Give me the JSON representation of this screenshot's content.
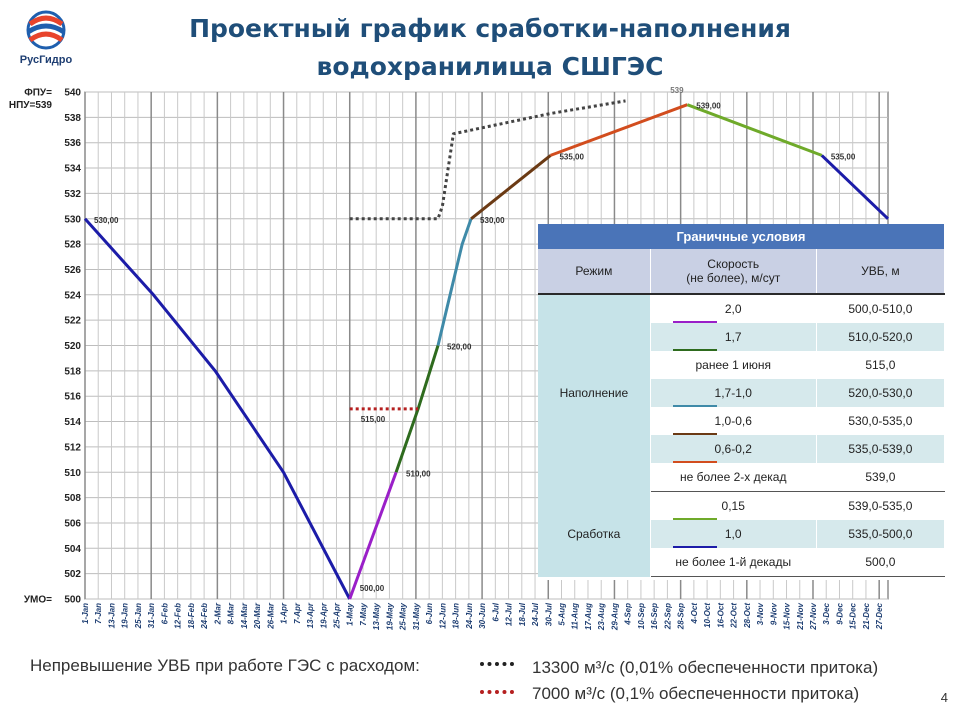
{
  "header": {
    "title_line1": "Проектный график сработки-наполнения",
    "title_line2": "водохранилища СШГЭС",
    "logo_text": "РусГидро"
  },
  "chart_data": {
    "type": "line",
    "ylim": [
      500,
      540
    ],
    "yticks": [
      500,
      502,
      504,
      506,
      508,
      510,
      512,
      514,
      516,
      518,
      520,
      522,
      524,
      526,
      528,
      530,
      532,
      534,
      536,
      538,
      540
    ],
    "level_labels": [
      {
        "text": "ФПУ=",
        "value": 540
      },
      {
        "text": "НПУ=539",
        "value": 539
      },
      {
        "text": "УМО=",
        "value": 500
      }
    ],
    "x_ticks": [
      "1-Jan",
      "7-Jan",
      "13-Jan",
      "19-Jan",
      "25-Jan",
      "31-Jan",
      "6-Feb",
      "12-Feb",
      "18-Feb",
      "24-Feb",
      "2-Mar",
      "8-Mar",
      "14-Mar",
      "20-Mar",
      "26-Mar",
      "1-Apr",
      "7-Apr",
      "13-Apr",
      "19-Apr",
      "25-Apr",
      "1-May",
      "7-May",
      "13-May",
      "19-May",
      "25-May",
      "31-May",
      "6-Jun",
      "12-Jun",
      "18-Jun",
      "24-Jun",
      "30-Jun",
      "6-Jul",
      "12-Jul",
      "18-Jul",
      "24-Jul",
      "30-Jul",
      "5-Aug",
      "11-Aug",
      "17-Aug",
      "23-Aug",
      "29-Aug",
      "4-Sep",
      "10-Sep",
      "16-Sep",
      "22-Sep",
      "28-Sep",
      "4-Oct",
      "10-Oct",
      "16-Oct",
      "22-Oct",
      "28-Oct",
      "3-Nov",
      "9-Nov",
      "15-Nov",
      "21-Nov",
      "27-Nov",
      "3-Dec",
      "9-Dec",
      "15-Dec",
      "21-Dec",
      "27-Dec"
    ],
    "x_unit": "day of year",
    "series": [
      {
        "color": "#1c1ca8",
        "style": "solid",
        "points": [
          [
            1,
            530
          ],
          [
            32,
            524
          ],
          [
            60,
            518
          ],
          [
            91,
            510
          ],
          [
            121,
            500
          ]
        ]
      },
      {
        "color": "#9a1fc8",
        "style": "solid",
        "points": [
          [
            121,
            500
          ],
          [
            142,
            510
          ]
        ]
      },
      {
        "color": "#2e6b1e",
        "style": "solid",
        "points": [
          [
            142,
            510
          ],
          [
            152,
            515
          ],
          [
            161,
            520
          ]
        ]
      },
      {
        "color": "#3f8aa8",
        "style": "solid",
        "points": [
          [
            161,
            520
          ],
          [
            172,
            528
          ],
          [
            176,
            530
          ]
        ]
      },
      {
        "color": "#6b3a14",
        "style": "solid",
        "points": [
          [
            176,
            530
          ],
          [
            212,
            535
          ]
        ]
      },
      {
        "color": "#d24d1e",
        "style": "solid",
        "points": [
          [
            212,
            535
          ],
          [
            274,
            539
          ]
        ]
      },
      {
        "color": "#6faa2a",
        "style": "solid",
        "points": [
          [
            274,
            539
          ],
          [
            335,
            535
          ]
        ]
      },
      {
        "color": "#1c1ca8",
        "style": "solid",
        "points": [
          [
            335,
            535
          ],
          [
            365,
            530
          ]
        ]
      },
      {
        "color": "#444444",
        "style": "dotted",
        "points": [
          [
            121,
            530
          ],
          [
            161,
            530
          ],
          [
            163,
            531
          ],
          [
            168,
            536.7
          ],
          [
            212,
            538.3
          ],
          [
            246,
            539.3
          ]
        ]
      },
      {
        "color": "#b52020",
        "style": "dotted",
        "points": [
          [
            121,
            515
          ],
          [
            152,
            515
          ]
        ]
      }
    ],
    "annotations": [
      {
        "text": "530,00",
        "x": 1,
        "y": 530
      },
      {
        "text": "500,00",
        "x": 121,
        "y": 500
      },
      {
        "text": "510,00",
        "x": 142,
        "y": 510
      },
      {
        "text": "515,00",
        "x": 121,
        "y": 515
      },
      {
        "text": "520,00",
        "x": 161,
        "y": 520
      },
      {
        "text": "530,00",
        "x": 176,
        "y": 530
      },
      {
        "text": "535,00",
        "x": 212,
        "y": 535
      },
      {
        "text": "539,00",
        "x": 274,
        "y": 539
      },
      {
        "text": "539",
        "x": 269,
        "y": 540
      },
      {
        "text": "535,00",
        "x": 335,
        "y": 535
      }
    ]
  },
  "boundary_conditions": {
    "title": "Граничные условия",
    "headers": {
      "mode": "Режим",
      "speed_line1": "Скорость",
      "speed_line2": "(не более), м/сут",
      "uvb": "УВБ, м"
    },
    "modes": {
      "fill": "Наполнение",
      "drawdown": "Сработка"
    },
    "fill_rows": [
      {
        "speed": "2,0",
        "uvb": "500,0-510,0",
        "color": "#9a1fc8"
      },
      {
        "speed": "1,7",
        "uvb": "510,0-520,0",
        "color": "#2e6b1e"
      },
      {
        "speed": "ранее 1 июня",
        "uvb": "515,0",
        "color": ""
      },
      {
        "speed": "1,7-1,0",
        "uvb": "520,0-530,0",
        "color": "#3f8aa8"
      },
      {
        "speed": "1,0-0,6",
        "uvb": "530,0-535,0",
        "color": "#6b3a14"
      },
      {
        "speed": "0,6-0,2",
        "uvb": "535,0-539,0",
        "color": "#d24d1e"
      },
      {
        "speed": "не более 2-х декад",
        "uvb": "539,0",
        "color": ""
      }
    ],
    "drawdown_rows": [
      {
        "speed": "0,15",
        "uvb": "539,0-535,0",
        "color": "#6faa2a"
      },
      {
        "speed": "1,0",
        "uvb": "535,0-500,0",
        "color": "#1c1ca8"
      },
      {
        "speed": "не более 1-й декады",
        "uvb": "500,0",
        "color": ""
      }
    ]
  },
  "legend": {
    "label": "Непревышение УВБ при работе ГЭС с расходом:",
    "items": [
      {
        "text": "13300 м³/с (0,01% обеспеченности притока)",
        "color": "#222222"
      },
      {
        "text": "7000 м³/с (0,1% обеспеченности притока)",
        "color": "#b52020"
      }
    ]
  },
  "page_number": "4"
}
